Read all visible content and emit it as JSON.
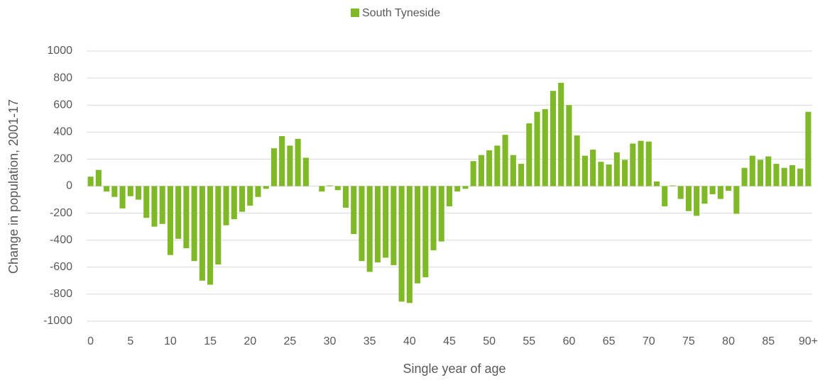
{
  "chart_data": {
    "type": "bar",
    "x_label": "Single year of age",
    "y_label": "Change in population, 2001-17",
    "series": [
      {
        "name": "South Tyneside",
        "color": "#80b927",
        "values": [
          70,
          120,
          -40,
          -80,
          -165,
          -75,
          -100,
          -235,
          -300,
          -280,
          -510,
          -390,
          -460,
          -555,
          -700,
          -730,
          -580,
          -290,
          -245,
          -190,
          -145,
          -80,
          -20,
          280,
          370,
          300,
          350,
          210,
          0,
          -40,
          5,
          -30,
          -160,
          -355,
          -555,
          -635,
          -565,
          -530,
          -585,
          -855,
          -865,
          -720,
          -675,
          -475,
          -410,
          -150,
          -40,
          -20,
          185,
          230,
          265,
          300,
          380,
          230,
          165,
          465,
          550,
          570,
          705,
          765,
          600,
          375,
          225,
          270,
          180,
          160,
          250,
          195,
          315,
          335,
          330,
          35,
          -150,
          5,
          -95,
          -185,
          -220,
          -130,
          -60,
          -95,
          -35,
          -205,
          135,
          225,
          195,
          220,
          165,
          135,
          155,
          130,
          550
        ]
      }
    ],
    "categories": [
      "0",
      null,
      null,
      null,
      null,
      "5",
      null,
      null,
      null,
      null,
      "10",
      null,
      null,
      null,
      null,
      "15",
      null,
      null,
      null,
      null,
      "20",
      null,
      null,
      null,
      null,
      "25",
      null,
      null,
      null,
      null,
      "30",
      null,
      null,
      null,
      null,
      "35",
      null,
      null,
      null,
      null,
      "40",
      null,
      null,
      null,
      null,
      "45",
      null,
      null,
      null,
      null,
      "50",
      null,
      null,
      null,
      null,
      "55",
      null,
      null,
      null,
      null,
      "60",
      null,
      null,
      null,
      null,
      "65",
      null,
      null,
      null,
      null,
      "70",
      null,
      null,
      null,
      null,
      "75",
      null,
      null,
      null,
      null,
      "80",
      null,
      null,
      null,
      null,
      "85",
      null,
      null,
      null,
      null,
      "90+"
    ],
    "ylim": [
      -1000,
      1000
    ],
    "yticks": [
      -1000,
      -800,
      -600,
      -400,
      -200,
      0,
      200,
      400,
      600,
      800,
      1000
    ],
    "grid": true,
    "legend": "top"
  }
}
